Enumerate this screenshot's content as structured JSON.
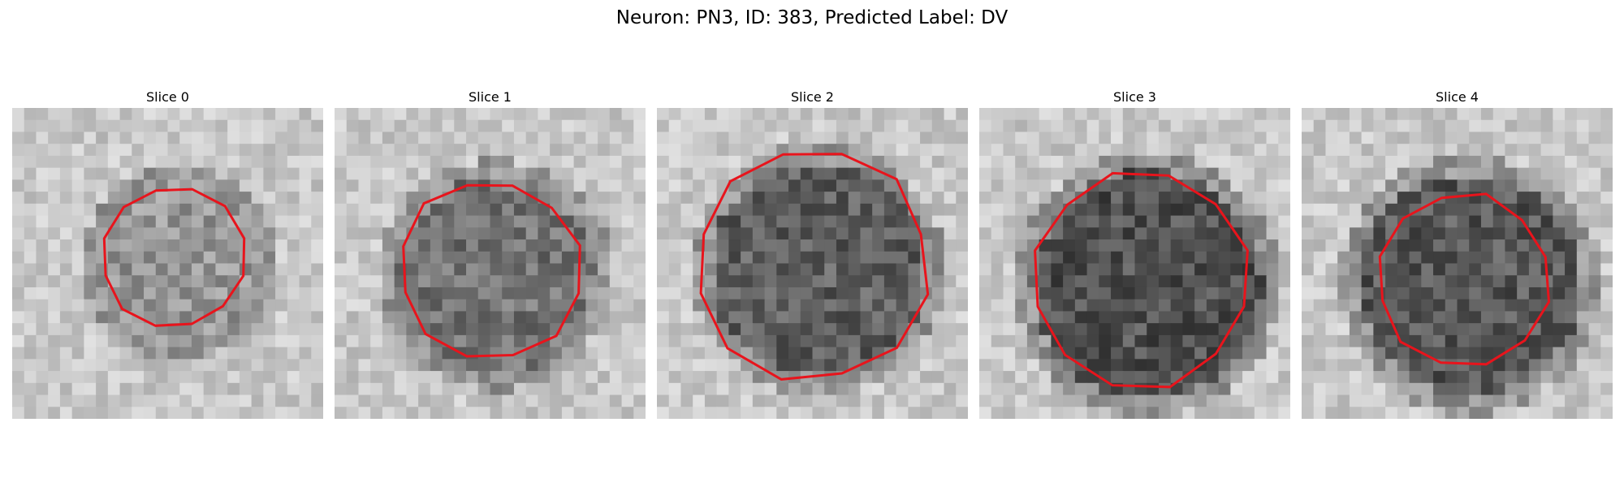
{
  "figure": {
    "title": "Neuron: PN3, ID: 383, Predicted Label: DV",
    "outline_color": "#e8141c",
    "panels": [
      {
        "title": "Slice 0",
        "blob": 0.35,
        "outline_fill": 0.46
      },
      {
        "title": "Slice 1",
        "blob": 0.6,
        "outline_fill": 0.58
      },
      {
        "title": "Slice 2",
        "blob": 0.75,
        "outline_fill": 0.75
      },
      {
        "title": "Slice 3",
        "blob": 0.85,
        "outline_fill": 0.7
      },
      {
        "title": "Slice 4",
        "blob": 0.8,
        "outline_fill": 0.55
      }
    ]
  }
}
